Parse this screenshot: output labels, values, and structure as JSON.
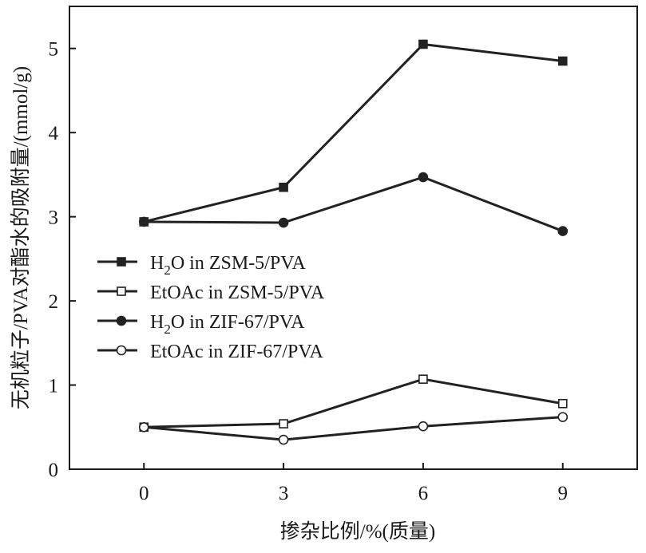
{
  "chart_data": {
    "type": "line",
    "title": "",
    "xlabel": "掺杂比例/%(质量)",
    "ylabel": "无机粒子/PVA对酯水的吸附量/(mmol/g)",
    "x": [
      0,
      3,
      6,
      9
    ],
    "x_ticks": [
      "0",
      "3",
      "6",
      "9"
    ],
    "xlim": [
      -1.6,
      10.6
    ],
    "y_ticks": [
      "0",
      "1",
      "2",
      "3",
      "4",
      "5"
    ],
    "ylim": [
      0,
      5.5
    ],
    "grid": false,
    "legend_position": "left-middle",
    "series": [
      {
        "name": "H2O in ZSM-5/PVA",
        "label_main": "H",
        "label_sub": "2",
        "label_rest": "O in ZSM-5/PVA",
        "marker": "square",
        "filled": true,
        "values": [
          2.94,
          3.35,
          5.05,
          4.85
        ]
      },
      {
        "name": "EtOAc in ZSM-5/PVA",
        "label_main": "EtOAc in ZSM-5/PVA",
        "label_sub": "",
        "label_rest": "",
        "marker": "square",
        "filled": false,
        "values": [
          0.5,
          0.54,
          1.07,
          0.78
        ]
      },
      {
        "name": "H2O in ZIF-67/PVA",
        "label_main": "H",
        "label_sub": "2",
        "label_rest": "O in ZIF-67/PVA",
        "marker": "circle",
        "filled": true,
        "values": [
          2.94,
          2.93,
          3.47,
          2.83
        ]
      },
      {
        "name": "EtOAc in ZIF-67/PVA",
        "label_main": "EtOAc in ZIF-67/PVA",
        "label_sub": "",
        "label_rest": "",
        "marker": "circle",
        "filled": false,
        "values": [
          0.5,
          0.35,
          0.51,
          0.62
        ]
      }
    ],
    "colors": {
      "line": "#222222",
      "marker_fill": "#222222",
      "marker_hollow": "#ffffff"
    }
  }
}
